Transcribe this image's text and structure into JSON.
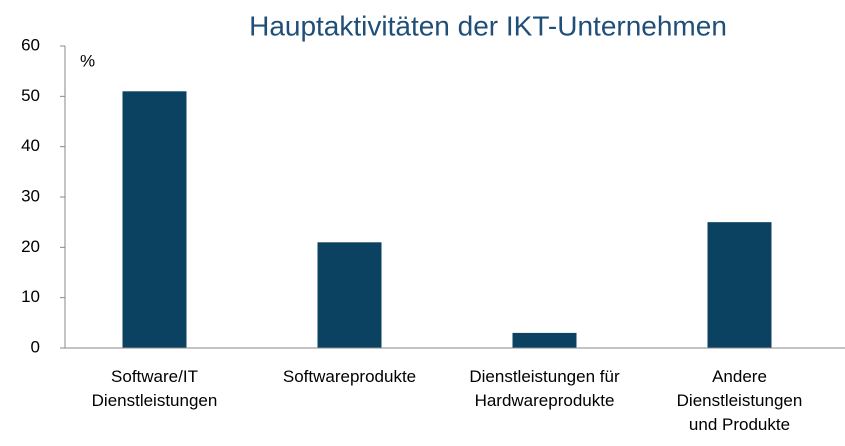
{
  "chart_data": {
    "type": "bar",
    "title": "Hauptaktivitäten der IKT-Unternehmen",
    "y_label": "%",
    "categories": [
      "Software/IT\nDienstleistungen",
      "Softwareprodukte",
      "Dienstleistungen für\nHardwareprodukte",
      "Andere\nDienstleistungen\nund Produkte"
    ],
    "values": [
      51,
      21,
      3,
      25
    ],
    "color": "#0b4261",
    "ylim": [
      0,
      60
    ],
    "yticks": [
      0,
      10,
      20,
      30,
      40,
      50,
      60
    ],
    "grid": false
  }
}
